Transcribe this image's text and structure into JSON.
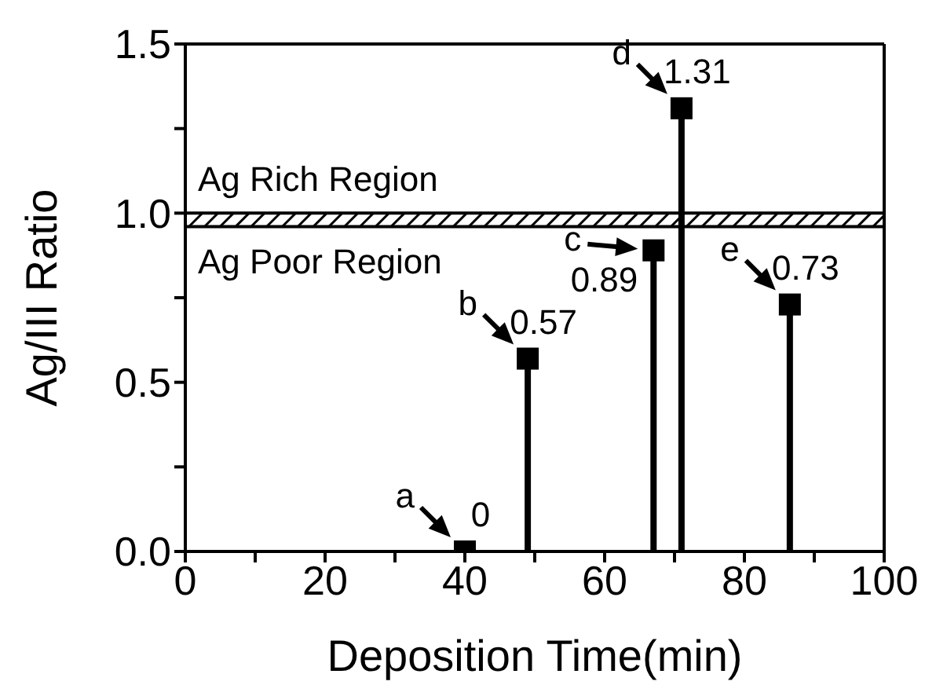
{
  "chart_data": {
    "type": "lollipop",
    "xlabel": "Deposition Time(min)",
    "ylabel": "Ag/III Ratio",
    "x": [
      40,
      49,
      67,
      71,
      86.5
    ],
    "values": [
      0,
      0.57,
      0.89,
      1.31,
      0.73
    ],
    "color": "#000000",
    "marker": "square",
    "data_labels": true,
    "xlim": [
      0,
      100
    ],
    "ylim": [
      0,
      1.5
    ],
    "xticks": [
      0,
      {
        "value": 10,
        "label": null
      },
      20,
      {
        "value": 30,
        "label": null
      },
      40,
      {
        "value": 50,
        "label": null
      },
      60,
      {
        "value": 70,
        "label": null
      },
      80,
      {
        "value": 90,
        "label": null
      },
      100
    ],
    "yticks": [
      {
        "value": 0,
        "label": "0.0"
      },
      {
        "value": 0.25,
        "label": null
      },
      {
        "value": 0.5,
        "label": "0.5"
      },
      {
        "value": 0.75,
        "label": null
      },
      {
        "value": 1,
        "label": "1.0"
      },
      {
        "value": 1.25,
        "label": null
      },
      {
        "value": 1.5,
        "label": "1.5"
      }
    ],
    "bands": [
      {
        "axis": "y",
        "from": 0.96,
        "to": 1.0,
        "color": "#000000"
      }
    ],
    "annotations": [
      "Ag Rich Region",
      "Ag Poor Region",
      {
        "text": "a",
        "x": 40,
        "y": 0
      },
      {
        "text": "b",
        "x": 49,
        "y": 0.57
      },
      {
        "text": "c",
        "x": 67,
        "y": 0.89
      },
      {
        "text": "d",
        "x": 71,
        "y": 1.31
      },
      {
        "text": "e",
        "x": 86.5,
        "y": 0.73
      }
    ],
    "grid": false,
    "legend": false
  }
}
